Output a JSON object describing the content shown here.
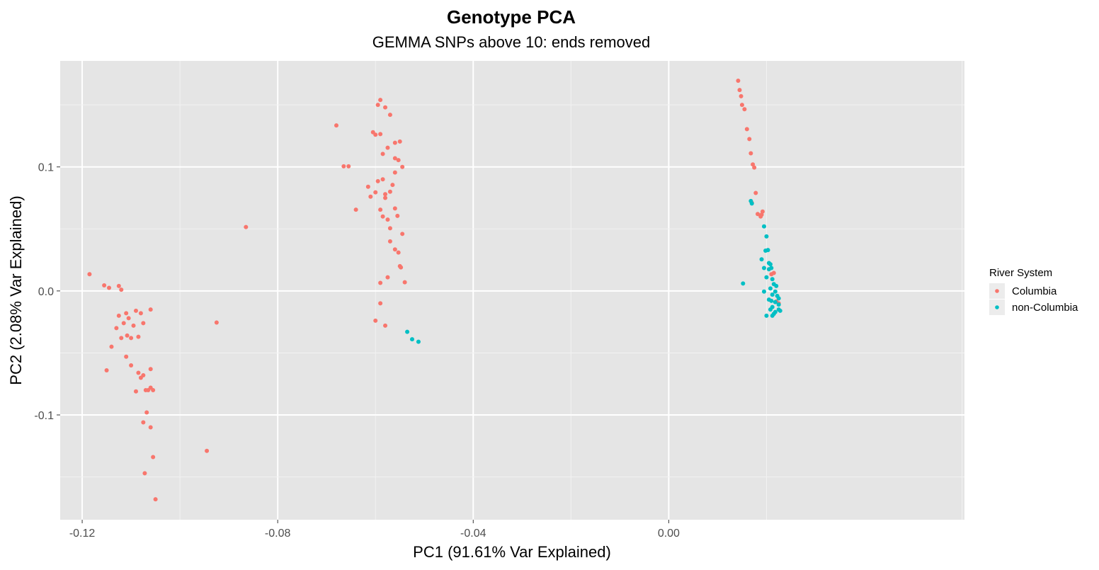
{
  "chart_data": {
    "type": "scatter",
    "title": "Genotype PCA",
    "subtitle": "GEMMA SNPs above 10: ends removed",
    "xlabel": "PC1 (91.61% Var Explained)",
    "ylabel": "PC2 (2.08% Var Explained)",
    "xlim": [
      -0.1245,
      0.0605
    ],
    "ylim": [
      -0.1845,
      0.1855
    ],
    "x_ticks": [
      -0.12,
      -0.08,
      -0.04,
      0.0
    ],
    "x_tick_labels": [
      "-0.12",
      "-0.08",
      "-0.04",
      "0.00"
    ],
    "y_ticks": [
      -0.1,
      0.0,
      0.1
    ],
    "y_tick_labels": [
      "-0.1",
      "0.0",
      "0.1"
    ],
    "grid": true,
    "panel_background": "#e5e5e5",
    "legend": {
      "title": "River System",
      "placement": "right"
    },
    "series": [
      {
        "name": "Columbia",
        "color": "#f8766d",
        "points": [
          [
            -0.1185,
            0.0135
          ],
          [
            -0.1155,
            0.0045
          ],
          [
            -0.1145,
            0.0025
          ],
          [
            -0.1125,
            0.004
          ],
          [
            -0.112,
            0.001
          ],
          [
            -0.114,
            -0.045
          ],
          [
            -0.115,
            -0.064
          ],
          [
            -0.1125,
            -0.02
          ],
          [
            -0.113,
            -0.03
          ],
          [
            -0.111,
            -0.018
          ],
          [
            -0.1115,
            -0.026
          ],
          [
            -0.1105,
            -0.022
          ],
          [
            -0.112,
            -0.038
          ],
          [
            -0.1108,
            -0.036
          ],
          [
            -0.11,
            -0.038
          ],
          [
            -0.1095,
            -0.028
          ],
          [
            -0.111,
            -0.053
          ],
          [
            -0.109,
            -0.016
          ],
          [
            -0.108,
            -0.018
          ],
          [
            -0.1085,
            -0.037
          ],
          [
            -0.1075,
            -0.026
          ],
          [
            -0.106,
            -0.015
          ],
          [
            -0.11,
            -0.06
          ],
          [
            -0.1085,
            -0.066
          ],
          [
            -0.1075,
            -0.068
          ],
          [
            -0.108,
            -0.07
          ],
          [
            -0.107,
            -0.08
          ],
          [
            -0.1065,
            -0.08
          ],
          [
            -0.106,
            -0.078
          ],
          [
            -0.1055,
            -0.08
          ],
          [
            -0.106,
            -0.063
          ],
          [
            -0.109,
            -0.081
          ],
          [
            -0.1068,
            -0.098
          ],
          [
            -0.1075,
            -0.106
          ],
          [
            -0.106,
            -0.11
          ],
          [
            -0.1055,
            -0.134
          ],
          [
            -0.1072,
            -0.147
          ],
          [
            -0.105,
            -0.168
          ],
          [
            -0.0865,
            0.0515
          ],
          [
            -0.0925,
            -0.0255
          ],
          [
            -0.0945,
            -0.129
          ],
          [
            -0.068,
            0.1335
          ],
          [
            -0.0665,
            0.1005
          ],
          [
            -0.0655,
            0.1005
          ],
          [
            -0.064,
            0.0655
          ],
          [
            -0.0615,
            0.084
          ],
          [
            -0.061,
            0.076
          ],
          [
            -0.06,
            0.0795
          ],
          [
            -0.0605,
            0.128
          ],
          [
            -0.06,
            0.126
          ],
          [
            -0.059,
            0.1265
          ],
          [
            -0.0595,
            0.15
          ],
          [
            -0.059,
            0.154
          ],
          [
            -0.058,
            0.148
          ],
          [
            -0.057,
            0.142
          ],
          [
            -0.0595,
            0.0885
          ],
          [
            -0.0585,
            0.09
          ],
          [
            -0.058,
            0.075
          ],
          [
            -0.059,
            0.0655
          ],
          [
            -0.0585,
            0.06
          ],
          [
            -0.059,
            0.0065
          ],
          [
            -0.059,
            -0.01
          ],
          [
            -0.06,
            -0.024
          ],
          [
            -0.058,
            -0.028
          ],
          [
            -0.058,
            0.078
          ],
          [
            -0.0575,
            0.0575
          ],
          [
            -0.057,
            0.0505
          ],
          [
            -0.057,
            0.04
          ],
          [
            -0.0575,
            0.011
          ],
          [
            -0.0585,
            0.1105
          ],
          [
            -0.0575,
            0.1155
          ],
          [
            -0.056,
            0.1195
          ],
          [
            -0.055,
            0.1205
          ],
          [
            -0.056,
            0.107
          ],
          [
            -0.0553,
            0.1055
          ],
          [
            -0.056,
            0.0955
          ],
          [
            -0.0545,
            0.1
          ],
          [
            -0.057,
            0.08
          ],
          [
            -0.056,
            0.0665
          ],
          [
            -0.0555,
            0.0605
          ],
          [
            -0.056,
            0.0335
          ],
          [
            -0.0553,
            0.031
          ],
          [
            -0.055,
            0.02
          ],
          [
            -0.0548,
            0.019
          ],
          [
            -0.0545,
            0.046
          ],
          [
            -0.054,
            0.007
          ],
          [
            -0.0565,
            0.0855
          ],
          [
            0.0142,
            0.1695
          ],
          [
            0.0145,
            0.162
          ],
          [
            0.0148,
            0.157
          ],
          [
            0.015,
            0.15
          ],
          [
            0.0155,
            0.1465
          ],
          [
            0.016,
            0.1305
          ],
          [
            0.0165,
            0.1225
          ],
          [
            0.0168,
            0.111
          ],
          [
            0.0172,
            0.102
          ],
          [
            0.0175,
            0.0995
          ],
          [
            0.0178,
            0.079
          ],
          [
            0.017,
            0.071
          ],
          [
            0.0182,
            0.062
          ],
          [
            0.0188,
            0.06
          ],
          [
            0.0192,
            0.064
          ],
          [
            0.019,
            0.0615
          ],
          [
            0.021,
            0.0135
          ],
          [
            0.0215,
            0.0145
          ],
          [
            0.022,
            -0.0085
          ],
          [
            0.0225,
            -0.01
          ]
        ]
      },
      {
        "name": "non-Columbia",
        "color": "#00bfc4",
        "points": [
          [
            -0.0535,
            -0.033
          ],
          [
            -0.0525,
            -0.039
          ],
          [
            -0.0512,
            -0.041
          ],
          [
            0.0168,
            0.0725
          ],
          [
            0.017,
            0.0705
          ],
          [
            0.0195,
            0.052
          ],
          [
            0.02,
            0.044
          ],
          [
            0.0198,
            0.0325
          ],
          [
            0.0203,
            0.033
          ],
          [
            0.019,
            0.0255
          ],
          [
            0.0205,
            0.0225
          ],
          [
            0.0208,
            0.0215
          ],
          [
            0.0195,
            0.0185
          ],
          [
            0.0205,
            0.0175
          ],
          [
            0.021,
            0.0185
          ],
          [
            0.02,
            0.011
          ],
          [
            0.0212,
            0.0095
          ],
          [
            0.0215,
            0.0055
          ],
          [
            0.022,
            0.004
          ],
          [
            0.0208,
            0.002
          ],
          [
            0.0218,
            -0.0005
          ],
          [
            0.0195,
            -0.0005
          ],
          [
            0.0212,
            -0.003
          ],
          [
            0.0222,
            -0.004
          ],
          [
            0.0225,
            -0.006
          ],
          [
            0.0205,
            -0.007
          ],
          [
            0.021,
            -0.008
          ],
          [
            0.0218,
            -0.009
          ],
          [
            0.0225,
            -0.011
          ],
          [
            0.0212,
            -0.013
          ],
          [
            0.0208,
            -0.015
          ],
          [
            0.0225,
            -0.015
          ],
          [
            0.0228,
            -0.016
          ],
          [
            0.0215,
            -0.0185
          ],
          [
            0.02,
            -0.02
          ],
          [
            0.0212,
            -0.02
          ],
          [
            0.0218,
            -0.017
          ],
          [
            0.0152,
            0.006
          ]
        ]
      }
    ]
  }
}
